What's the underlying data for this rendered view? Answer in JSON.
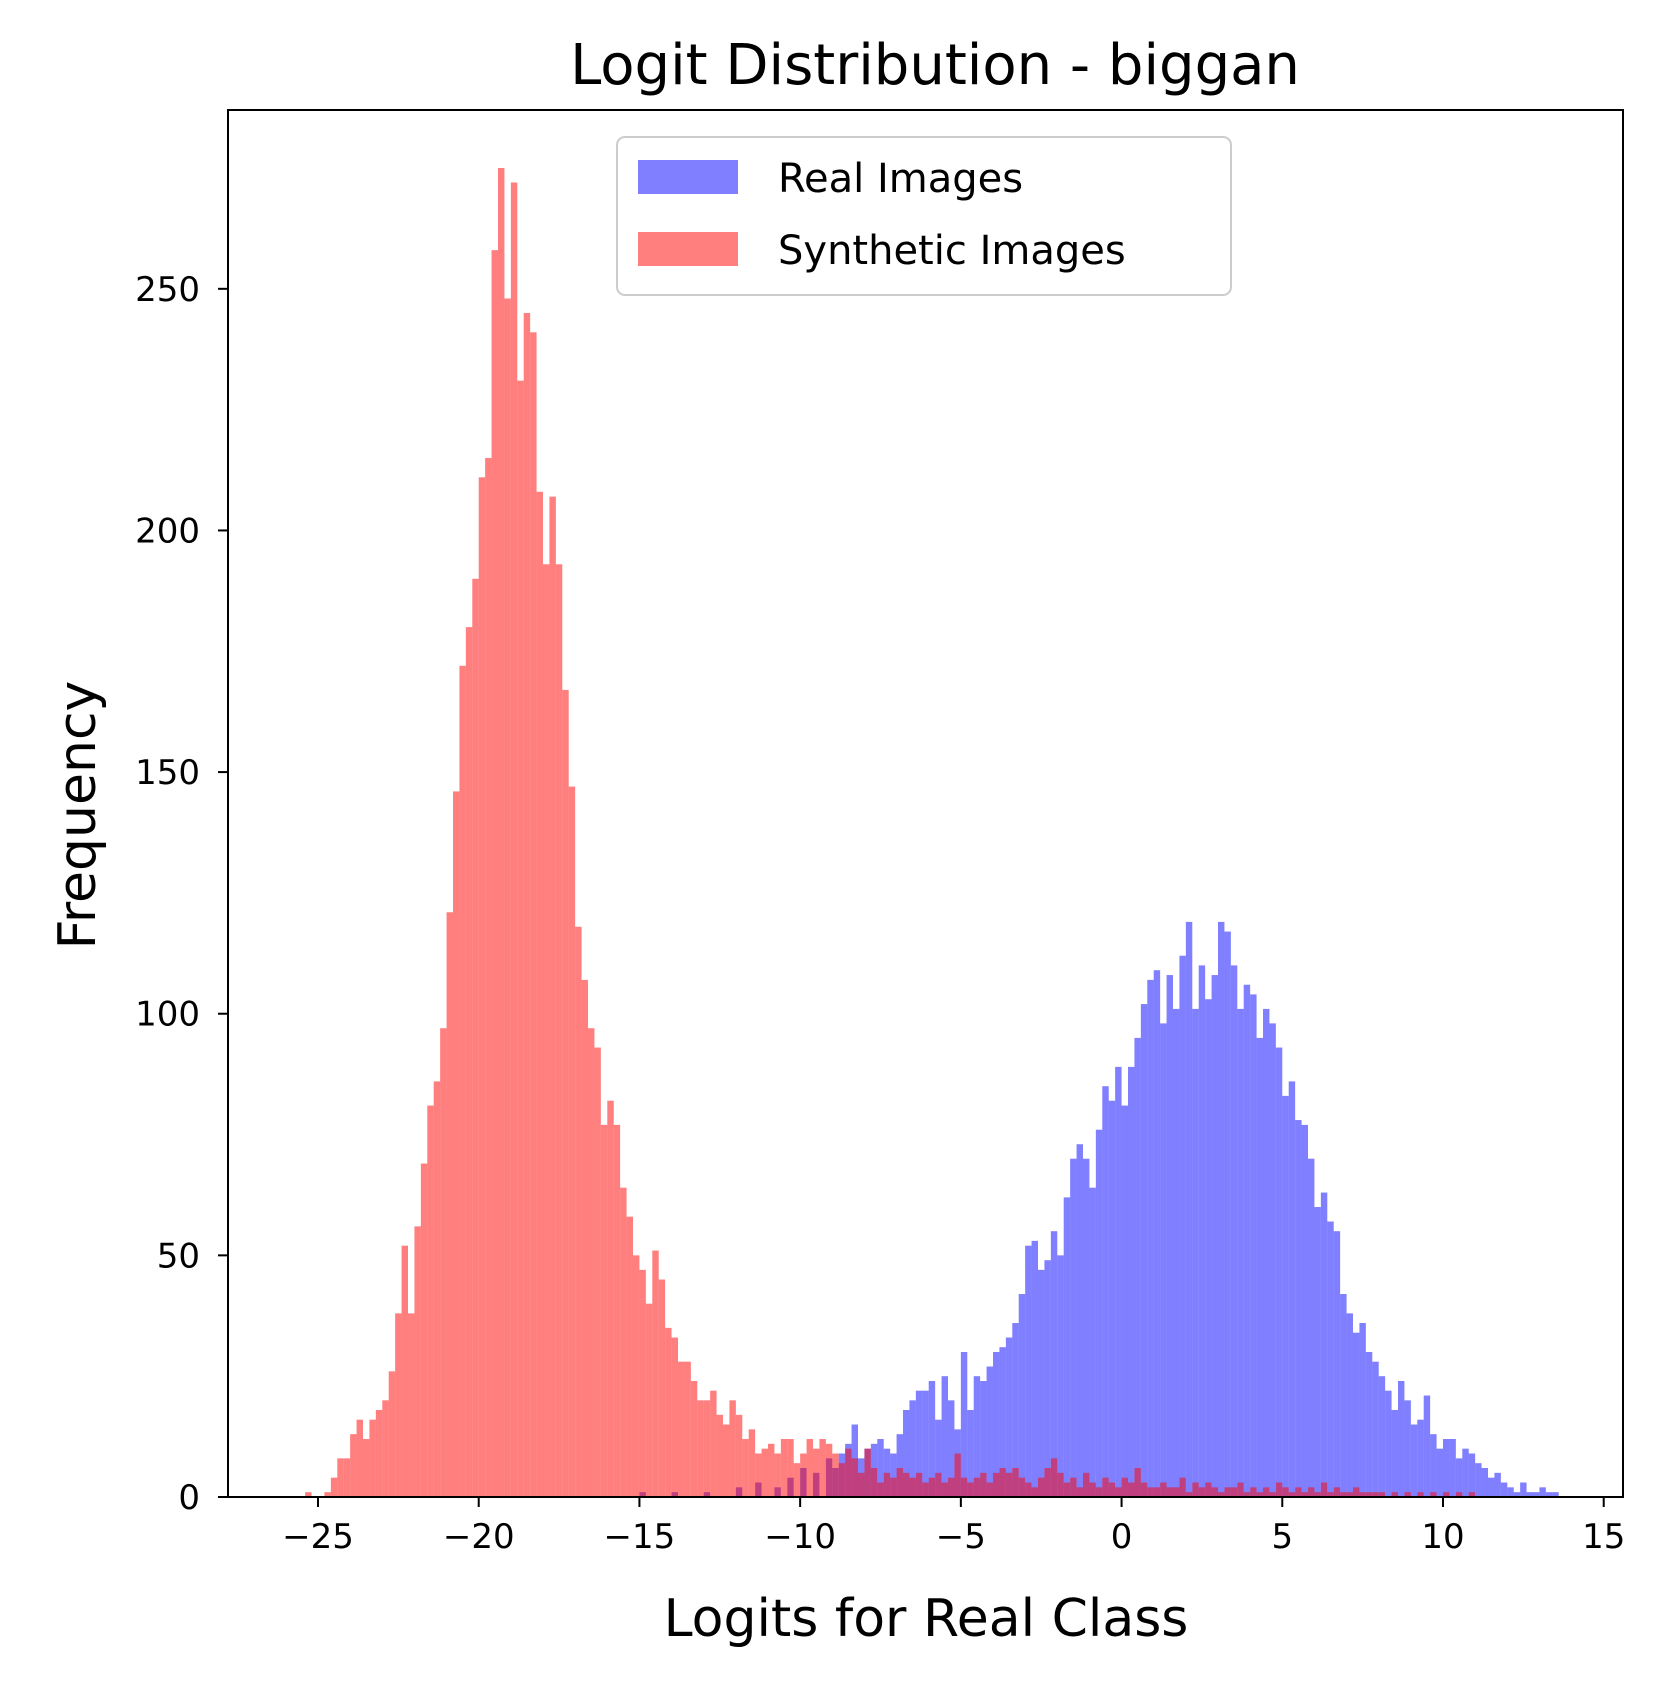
{
  "chart_data": {
    "type": "histogram",
    "title": "Logit Distribution - biggan",
    "xlabel": "Logits for Real Class",
    "ylabel": "Frequency",
    "xlim": [
      -27.8,
      15.6
    ],
    "ylim": [
      0,
      287
    ],
    "xticks": [
      -25,
      -20,
      -15,
      -10,
      -5,
      0,
      5,
      10,
      15
    ],
    "xtick_labels": [
      "−25",
      "−20",
      "−15",
      "−10",
      "−5",
      "0",
      "5",
      "10",
      "15"
    ],
    "yticks": [
      0,
      50,
      100,
      150,
      200,
      250
    ],
    "ytick_labels": [
      "0",
      "50",
      "100",
      "150",
      "200",
      "250"
    ],
    "grid": false,
    "legend": {
      "position": "top-center"
    },
    "bin_width": 0.2,
    "series": [
      {
        "name": "Real Images",
        "color": "#0000ff",
        "alpha": 0.5,
        "points": [
          [
            -15.0,
            1
          ],
          [
            -14.0,
            1
          ],
          [
            -13.0,
            1
          ],
          [
            -12.0,
            2
          ],
          [
            -11.4,
            3
          ],
          [
            -10.8,
            2
          ],
          [
            -10.4,
            4
          ],
          [
            -10.0,
            6
          ],
          [
            -9.6,
            5
          ],
          [
            -9.2,
            8
          ],
          [
            -9.0,
            6
          ],
          [
            -8.8,
            9
          ],
          [
            -8.6,
            11
          ],
          [
            -8.4,
            15
          ],
          [
            -8.2,
            8
          ],
          [
            -8.0,
            10
          ],
          [
            -7.8,
            11
          ],
          [
            -7.6,
            12
          ],
          [
            -7.4,
            10
          ],
          [
            -7.2,
            9
          ],
          [
            -7.0,
            13
          ],
          [
            -6.8,
            18
          ],
          [
            -6.6,
            20
          ],
          [
            -6.4,
            22
          ],
          [
            -6.2,
            22
          ],
          [
            -6.0,
            24
          ],
          [
            -5.8,
            16
          ],
          [
            -5.6,
            25
          ],
          [
            -5.4,
            20
          ],
          [
            -5.2,
            14
          ],
          [
            -5.0,
            30
          ],
          [
            -4.8,
            18
          ],
          [
            -4.6,
            25
          ],
          [
            -4.4,
            24
          ],
          [
            -4.2,
            27
          ],
          [
            -4.0,
            30
          ],
          [
            -3.8,
            31
          ],
          [
            -3.6,
            33
          ],
          [
            -3.4,
            36
          ],
          [
            -3.2,
            42
          ],
          [
            -3.0,
            52
          ],
          [
            -2.8,
            53
          ],
          [
            -2.6,
            47
          ],
          [
            -2.4,
            49
          ],
          [
            -2.2,
            55
          ],
          [
            -2.0,
            50
          ],
          [
            -1.8,
            62
          ],
          [
            -1.6,
            70
          ],
          [
            -1.4,
            73
          ],
          [
            -1.2,
            70
          ],
          [
            -1.0,
            64
          ],
          [
            -0.8,
            76
          ],
          [
            -0.6,
            85
          ],
          [
            -0.4,
            82
          ],
          [
            -0.2,
            89
          ],
          [
            0.0,
            81
          ],
          [
            0.2,
            89
          ],
          [
            0.4,
            95
          ],
          [
            0.6,
            102
          ],
          [
            0.8,
            107
          ],
          [
            1.0,
            109
          ],
          [
            1.2,
            98
          ],
          [
            1.4,
            108
          ],
          [
            1.6,
            101
          ],
          [
            1.8,
            112
          ],
          [
            2.0,
            119
          ],
          [
            2.2,
            101
          ],
          [
            2.4,
            110
          ],
          [
            2.6,
            103
          ],
          [
            2.8,
            108
          ],
          [
            3.0,
            119
          ],
          [
            3.2,
            117
          ],
          [
            3.4,
            110
          ],
          [
            3.6,
            101
          ],
          [
            3.8,
            106
          ],
          [
            4.0,
            104
          ],
          [
            4.2,
            95
          ],
          [
            4.4,
            101
          ],
          [
            4.6,
            98
          ],
          [
            4.8,
            93
          ],
          [
            5.0,
            83
          ],
          [
            5.2,
            86
          ],
          [
            5.4,
            78
          ],
          [
            5.6,
            77
          ],
          [
            5.8,
            70
          ],
          [
            6.0,
            60
          ],
          [
            6.2,
            63
          ],
          [
            6.4,
            57
          ],
          [
            6.6,
            55
          ],
          [
            6.8,
            42
          ],
          [
            7.0,
            38
          ],
          [
            7.2,
            34
          ],
          [
            7.4,
            36
          ],
          [
            7.6,
            30
          ],
          [
            7.8,
            28
          ],
          [
            8.0,
            25
          ],
          [
            8.2,
            22
          ],
          [
            8.4,
            18
          ],
          [
            8.6,
            24
          ],
          [
            8.8,
            20
          ],
          [
            9.0,
            15
          ],
          [
            9.2,
            16
          ],
          [
            9.4,
            21
          ],
          [
            9.6,
            13
          ],
          [
            9.8,
            10
          ],
          [
            10.0,
            12
          ],
          [
            10.2,
            12
          ],
          [
            10.4,
            8
          ],
          [
            10.6,
            10
          ],
          [
            10.8,
            9
          ],
          [
            11.0,
            7
          ],
          [
            11.2,
            6
          ],
          [
            11.4,
            4
          ],
          [
            11.6,
            5
          ],
          [
            11.8,
            3
          ],
          [
            12.0,
            2
          ],
          [
            12.2,
            1
          ],
          [
            12.4,
            3
          ],
          [
            12.6,
            1
          ],
          [
            12.8,
            1
          ],
          [
            13.0,
            2
          ],
          [
            13.2,
            1
          ],
          [
            13.4,
            1
          ]
        ]
      },
      {
        "name": "Synthetic Images",
        "color": "#ff0000",
        "alpha": 0.5,
        "points": [
          [
            -25.4,
            1
          ],
          [
            -24.8,
            1
          ],
          [
            -24.6,
            4
          ],
          [
            -24.4,
            8
          ],
          [
            -24.2,
            8
          ],
          [
            -24.0,
            13
          ],
          [
            -23.8,
            16
          ],
          [
            -23.6,
            12
          ],
          [
            -23.4,
            16
          ],
          [
            -23.2,
            18
          ],
          [
            -23.0,
            20
          ],
          [
            -22.8,
            26
          ],
          [
            -22.6,
            38
          ],
          [
            -22.4,
            52
          ],
          [
            -22.2,
            38
          ],
          [
            -22.0,
            56
          ],
          [
            -21.8,
            69
          ],
          [
            -21.6,
            81
          ],
          [
            -21.4,
            86
          ],
          [
            -21.2,
            97
          ],
          [
            -21.0,
            121
          ],
          [
            -20.8,
            146
          ],
          [
            -20.6,
            172
          ],
          [
            -20.4,
            180
          ],
          [
            -20.2,
            190
          ],
          [
            -20.0,
            211
          ],
          [
            -19.8,
            215
          ],
          [
            -19.6,
            258
          ],
          [
            -19.4,
            275
          ],
          [
            -19.2,
            248
          ],
          [
            -19.0,
            272
          ],
          [
            -18.8,
            231
          ],
          [
            -18.6,
            245
          ],
          [
            -18.4,
            241
          ],
          [
            -18.2,
            208
          ],
          [
            -18.0,
            193
          ],
          [
            -17.8,
            207
          ],
          [
            -17.6,
            193
          ],
          [
            -17.4,
            167
          ],
          [
            -17.2,
            147
          ],
          [
            -17.0,
            118
          ],
          [
            -16.8,
            107
          ],
          [
            -16.6,
            97
          ],
          [
            -16.4,
            93
          ],
          [
            -16.2,
            77
          ],
          [
            -16.0,
            82
          ],
          [
            -15.8,
            77
          ],
          [
            -15.6,
            64
          ],
          [
            -15.4,
            58
          ],
          [
            -15.2,
            50
          ],
          [
            -15.0,
            47
          ],
          [
            -14.8,
            40
          ],
          [
            -14.6,
            51
          ],
          [
            -14.4,
            45
          ],
          [
            -14.2,
            35
          ],
          [
            -14.0,
            33
          ],
          [
            -13.8,
            28
          ],
          [
            -13.6,
            28
          ],
          [
            -13.4,
            24
          ],
          [
            -13.2,
            20
          ],
          [
            -13.0,
            20
          ],
          [
            -12.8,
            22
          ],
          [
            -12.6,
            17
          ],
          [
            -12.4,
            15
          ],
          [
            -12.2,
            20
          ],
          [
            -12.0,
            17
          ],
          [
            -11.8,
            12
          ],
          [
            -11.6,
            14
          ],
          [
            -11.4,
            9
          ],
          [
            -11.2,
            10
          ],
          [
            -11.0,
            11
          ],
          [
            -10.8,
            9
          ],
          [
            -10.6,
            12
          ],
          [
            -10.4,
            12
          ],
          [
            -10.2,
            7
          ],
          [
            -10.0,
            9
          ],
          [
            -9.8,
            12
          ],
          [
            -9.6,
            10
          ],
          [
            -9.4,
            12
          ],
          [
            -9.2,
            11
          ],
          [
            -9.0,
            9
          ],
          [
            -8.8,
            7
          ],
          [
            -8.6,
            10
          ],
          [
            -8.4,
            8
          ],
          [
            -8.2,
            5
          ],
          [
            -8.0,
            10
          ],
          [
            -7.8,
            6
          ],
          [
            -7.6,
            3
          ],
          [
            -7.4,
            5
          ],
          [
            -7.2,
            4
          ],
          [
            -7.0,
            6
          ],
          [
            -6.8,
            5
          ],
          [
            -6.6,
            4
          ],
          [
            -6.4,
            5
          ],
          [
            -6.2,
            3
          ],
          [
            -6.0,
            4
          ],
          [
            -5.8,
            5
          ],
          [
            -5.6,
            3
          ],
          [
            -5.4,
            4
          ],
          [
            -5.2,
            9
          ],
          [
            -5.0,
            4
          ],
          [
            -4.8,
            3
          ],
          [
            -4.6,
            4
          ],
          [
            -4.4,
            5
          ],
          [
            -4.2,
            3
          ],
          [
            -4.0,
            5
          ],
          [
            -3.8,
            6
          ],
          [
            -3.6,
            5
          ],
          [
            -3.4,
            6
          ],
          [
            -3.2,
            4
          ],
          [
            -3.0,
            3
          ],
          [
            -2.8,
            2
          ],
          [
            -2.6,
            4
          ],
          [
            -2.4,
            6
          ],
          [
            -2.2,
            8
          ],
          [
            -2.0,
            5
          ],
          [
            -1.8,
            3
          ],
          [
            -1.6,
            4
          ],
          [
            -1.4,
            2
          ],
          [
            -1.2,
            5
          ],
          [
            -1.0,
            3
          ],
          [
            -0.8,
            2
          ],
          [
            -0.6,
            4
          ],
          [
            -0.4,
            3
          ],
          [
            -0.2,
            2
          ],
          [
            0.0,
            4
          ],
          [
            0.2,
            3
          ],
          [
            0.4,
            6
          ],
          [
            0.6,
            3
          ],
          [
            0.8,
            2
          ],
          [
            1.0,
            2
          ],
          [
            1.2,
            3
          ],
          [
            1.4,
            2
          ],
          [
            1.6,
            2
          ],
          [
            1.8,
            4
          ],
          [
            2.0,
            1
          ],
          [
            2.2,
            3
          ],
          [
            2.4,
            2
          ],
          [
            2.6,
            3
          ],
          [
            2.8,
            2
          ],
          [
            3.0,
            1
          ],
          [
            3.2,
            2
          ],
          [
            3.4,
            2
          ],
          [
            3.6,
            3
          ],
          [
            3.8,
            1
          ],
          [
            4.0,
            2
          ],
          [
            4.2,
            1
          ],
          [
            4.4,
            2
          ],
          [
            4.6,
            1
          ],
          [
            4.8,
            3
          ],
          [
            5.0,
            2
          ],
          [
            5.2,
            1
          ],
          [
            5.4,
            2
          ],
          [
            5.6,
            1
          ],
          [
            5.8,
            2
          ],
          [
            6.0,
            1
          ],
          [
            6.2,
            3
          ],
          [
            6.4,
            1
          ],
          [
            6.6,
            2
          ],
          [
            6.8,
            1
          ],
          [
            7.0,
            1
          ],
          [
            7.2,
            2
          ],
          [
            7.4,
            1
          ],
          [
            7.6,
            1
          ],
          [
            7.8,
            1
          ],
          [
            8.0,
            1
          ],
          [
            8.4,
            1
          ],
          [
            8.8,
            1
          ],
          [
            9.2,
            1
          ],
          [
            9.6,
            1
          ],
          [
            10.0,
            1
          ],
          [
            10.4,
            1
          ],
          [
            10.8,
            1
          ]
        ]
      }
    ]
  }
}
